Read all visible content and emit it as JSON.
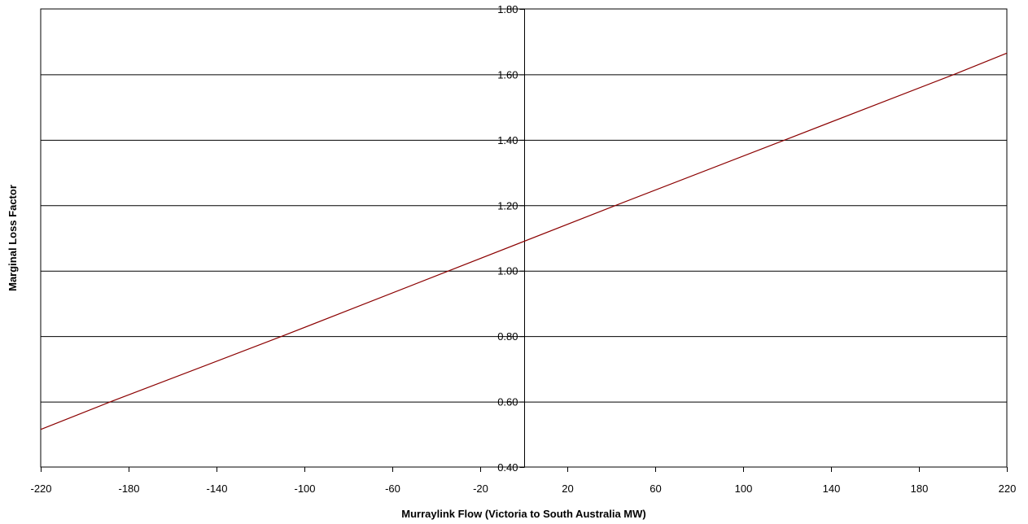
{
  "chart_data": {
    "type": "line",
    "title": "",
    "xlabel": "Murraylink Flow (Victoria to South Australia MW)",
    "ylabel": "Marginal Loss Factor",
    "xlim": [
      -220,
      220
    ],
    "ylim": [
      0.4,
      1.8
    ],
    "x_ticks": [
      -220,
      -180,
      -140,
      -100,
      -60,
      -20,
      20,
      60,
      100,
      140,
      180,
      220
    ],
    "x_tick_labels": [
      "-220",
      "-180",
      "-140",
      "-100",
      "-60",
      "-20",
      "20",
      "60",
      "100",
      "140",
      "180",
      "220"
    ],
    "y_ticks": [
      0.4,
      0.6,
      0.8,
      1.0,
      1.2,
      1.4,
      1.6,
      1.8
    ],
    "y_tick_labels": [
      "0.40",
      "0.60",
      "0.80",
      "1.00",
      "1.20",
      "1.40",
      "1.60",
      "1.80"
    ],
    "grid": "horizontal",
    "legend": "none",
    "y_axis_at_x": 0,
    "series": [
      {
        "color": "#8b0000",
        "x": [
          -220,
          -188,
          -110,
          -34,
          42,
          119,
          196,
          220
        ],
        "y": [
          0.515,
          0.6,
          0.8,
          1.0,
          1.2,
          1.4,
          1.6,
          1.665
        ]
      }
    ]
  }
}
